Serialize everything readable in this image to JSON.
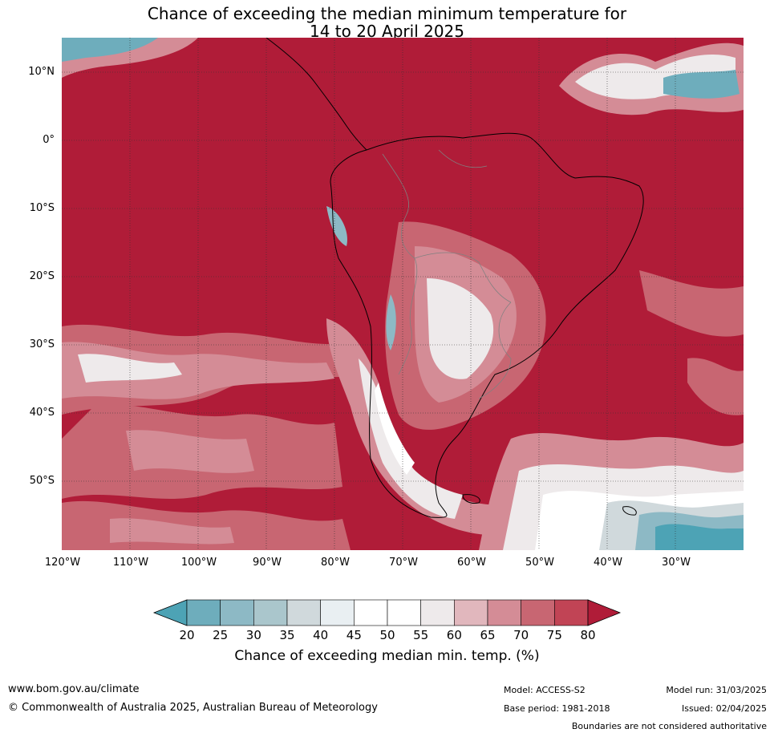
{
  "title": {
    "line1": "Chance of exceeding the median minimum temperature for",
    "line2": "14 to 20 April 2025"
  },
  "map": {
    "lat_labels": [
      "10°N",
      "0°",
      "10°S",
      "20°S",
      "30°S",
      "40°S",
      "50°S"
    ],
    "lon_labels": [
      "120°W",
      "110°W",
      "100°W",
      "90°W",
      "80°W",
      "70°W",
      "60°W",
      "50°W",
      "40°W",
      "30°W"
    ],
    "extent": {
      "lon_min": -120,
      "lon_max": -20,
      "lat_min": -60,
      "lat_max": 15
    },
    "dominant_category": "above 80%",
    "colors": {
      "above80": "#b01c38",
      "land_border": "#000000",
      "country_border": "#808080",
      "grid": "#333333"
    }
  },
  "colorbar": {
    "ticks": [
      "20",
      "25",
      "30",
      "35",
      "40",
      "45",
      "50",
      "55",
      "60",
      "65",
      "70",
      "75",
      "80"
    ],
    "label": "Chance of exceeding median min. temp. (%)",
    "colors": [
      "#4da3b5",
      "#6eadbc",
      "#8db9c5",
      "#aac6cc",
      "#d0d9dc",
      "#e9eff2",
      "#ffffff",
      "#ffffff",
      "#eeeaeb",
      "#e1b7bd",
      "#d48c96",
      "#c86672",
      "#c14455",
      "#b01c38"
    ]
  },
  "footer": {
    "url": "www.bom.gov.au/climate",
    "copyright": "© Commonwealth of Australia 2025, Australian Bureau of Meteorology",
    "model": "Model: ACCESS-S2",
    "base_period": "Base period: 1981-2018",
    "model_run": "Model run: 31/03/2025",
    "issued": "Issued: 02/04/2025",
    "disclaimer": "Boundaries are not considered authoritative"
  }
}
